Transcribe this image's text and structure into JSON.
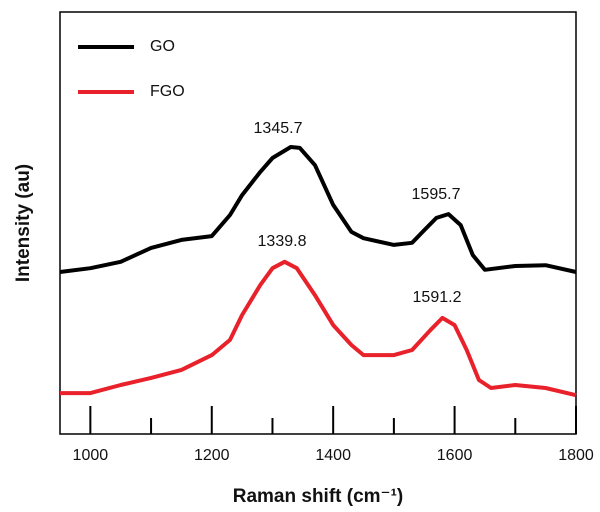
{
  "chart_data": {
    "type": "line",
    "x_label": "Raman shift (cm⁻¹)",
    "y_label": "Intensity (au)",
    "xlim": [
      950,
      1800
    ],
    "xticks": [
      1000,
      1200,
      1400,
      1600,
      1800
    ],
    "xminor_ticks": [
      1100,
      1300,
      1500,
      1700
    ],
    "ylim": [
      0,
      100
    ],
    "legend": "upper left",
    "series": [
      {
        "name": "GO",
        "color": "#000000",
        "x": [
          950,
          1000,
          1050,
          1100,
          1150,
          1200,
          1230,
          1250,
          1280,
          1300,
          1330,
          1345,
          1370,
          1400,
          1430,
          1450,
          1500,
          1530,
          1550,
          1570,
          1590,
          1610,
          1630,
          1650,
          1700,
          1750,
          1800
        ],
        "values": [
          38.4,
          39.3,
          40.8,
          44.1,
          46.0,
          46.9,
          51.9,
          56.6,
          62.1,
          65.4,
          68.0,
          67.8,
          63.7,
          54.3,
          47.9,
          46.4,
          44.8,
          45.3,
          48.3,
          51.2,
          52.1,
          49.5,
          42.4,
          38.9,
          39.8,
          40.0,
          38.4
        ]
      },
      {
        "name": "FGO",
        "color": "#e8212a",
        "x": [
          950,
          1000,
          1050,
          1100,
          1150,
          1200,
          1230,
          1250,
          1280,
          1300,
          1320,
          1340,
          1370,
          1400,
          1430,
          1450,
          1500,
          1530,
          1560,
          1580,
          1600,
          1620,
          1640,
          1660,
          1700,
          1750,
          1800
        ],
        "values": [
          9.7,
          9.7,
          11.6,
          13.3,
          15.2,
          18.7,
          22.3,
          28.2,
          35.3,
          39.3,
          40.8,
          39.3,
          32.9,
          25.8,
          21.1,
          18.7,
          18.7,
          19.9,
          24.6,
          27.5,
          25.8,
          19.9,
          12.8,
          10.9,
          11.6,
          10.9,
          9.2
        ]
      }
    ],
    "annotations": [
      "1345.7",
      "1595.7",
      "1339.8",
      "1591.2"
    ]
  }
}
